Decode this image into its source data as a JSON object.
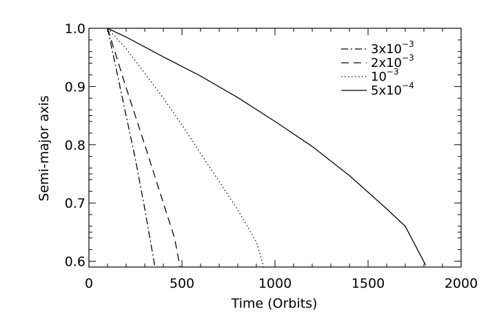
{
  "chart_data": {
    "type": "line",
    "title": "",
    "xlabel": "Time (Orbits)",
    "ylabel": "Semi-major axis",
    "xlim": [
      0,
      2000
    ],
    "ylim": [
      0.59,
      1.0
    ],
    "x_ticks": [
      "0",
      "500",
      "1000",
      "1500",
      "2000"
    ],
    "y_ticks": [
      "0.6",
      "0.7",
      "0.8",
      "0.9",
      "1.0"
    ],
    "grid": false,
    "legend_position": "top-right",
    "series": [
      {
        "name_base": "3x10",
        "name_exp": "−3",
        "style": "dashdot",
        "x": [
          100,
          150,
          200,
          250,
          300,
          340,
          355
        ],
        "y": [
          1.0,
          0.925,
          0.85,
          0.775,
          0.69,
          0.617,
          0.59
        ]
      },
      {
        "name_base": "2x10",
        "name_exp": "−3",
        "style": "dashed",
        "x": [
          100,
          200,
          300,
          400,
          460,
          490
        ],
        "y": [
          1.0,
          0.898,
          0.8,
          0.7,
          0.64,
          0.59
        ]
      },
      {
        "name_base": "10",
        "name_exp": "−3",
        "style": "dotted",
        "x": [
          100,
          200,
          300,
          400,
          500,
          600,
          700,
          800,
          900,
          940
        ],
        "y": [
          1.0,
          0.965,
          0.923,
          0.88,
          0.834,
          0.785,
          0.737,
          0.688,
          0.633,
          0.59
        ]
      },
      {
        "name_base": "5x10",
        "name_exp": "−4",
        "style": "solid",
        "x": [
          100,
          200,
          400,
          600,
          800,
          1000,
          1200,
          1400,
          1600,
          1700,
          1810
        ],
        "y": [
          1.0,
          0.985,
          0.951,
          0.918,
          0.881,
          0.84,
          0.797,
          0.747,
          0.69,
          0.66,
          0.593
        ]
      }
    ]
  }
}
